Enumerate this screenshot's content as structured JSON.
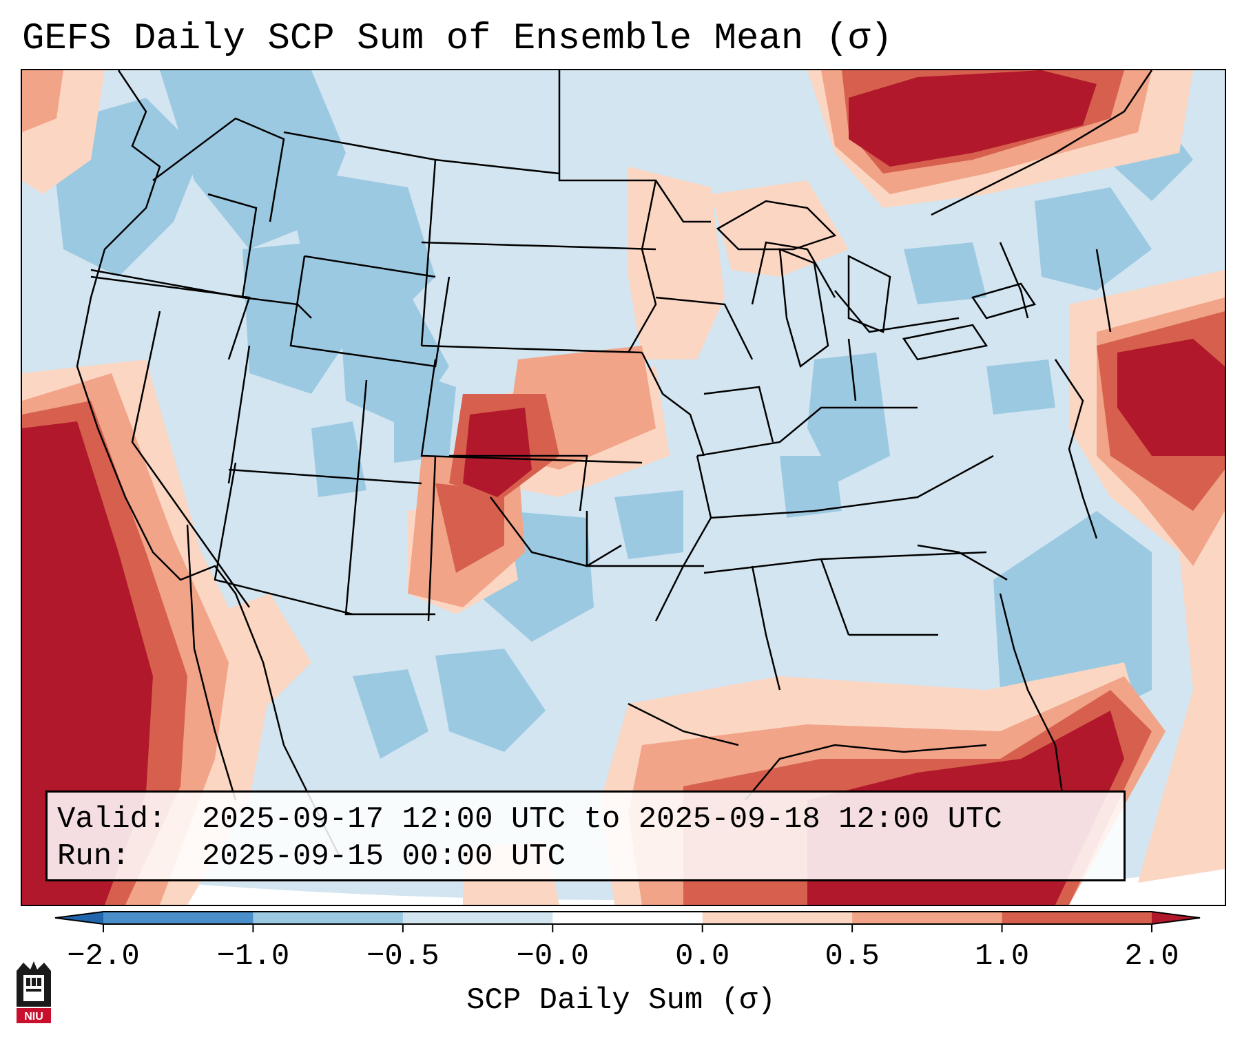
{
  "title": "GEFS Daily SCP Sum of Ensemble Mean (σ)",
  "info": {
    "valid_key": "Valid:",
    "valid_value": "2025-09-17 12:00 UTC to 2025-09-18 12:00 UTC",
    "run_key": "Run:",
    "run_value": "2025-09-15 00:00 UTC"
  },
  "colorbar": {
    "label": "SCP Daily Sum (σ)",
    "ticks": [
      "−2.0",
      "−1.0",
      "−0.5",
      "−0.0",
      "0.0",
      "0.5",
      "1.0",
      "2.0"
    ],
    "colors": [
      "#4a8fc9",
      "#9cc9e2",
      "#d2e5f0",
      "#ffffff",
      "#fbd6c3",
      "#f1a488",
      "#d6604d",
      "#b2182b"
    ]
  },
  "logo": {
    "text": "NIU"
  },
  "icons": [
    "niu-logo-icon"
  ]
}
